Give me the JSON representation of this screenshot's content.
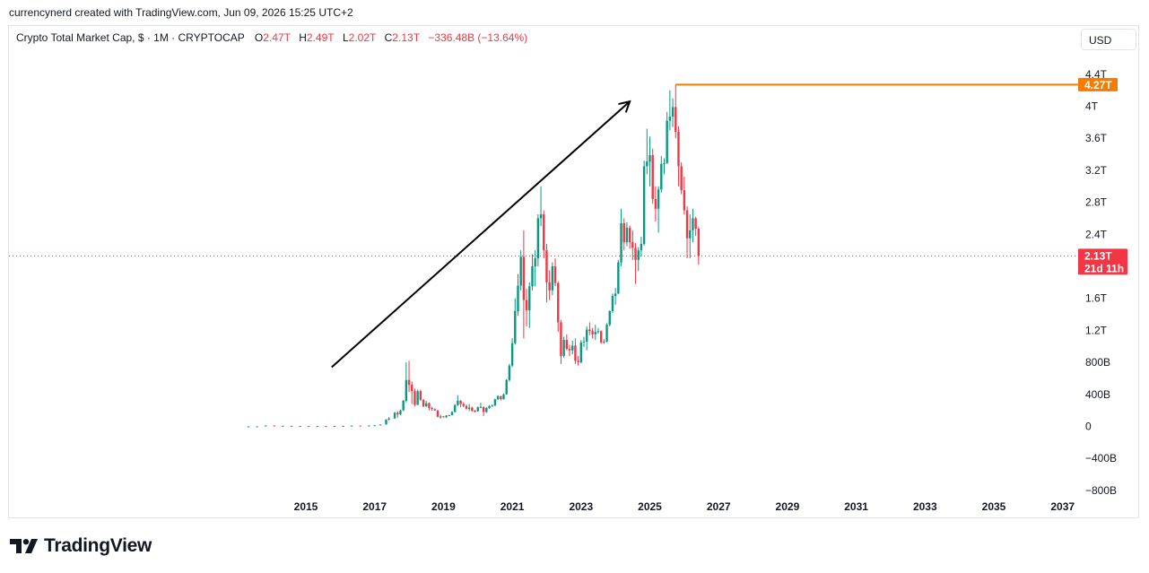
{
  "credit": "currencynerd created with TradingView.com, Jun 09, 2026 15:25 UTC+2",
  "legend": {
    "symbol": "Crypto Total Market Cap, $ · 1M · CRYPTOCAP",
    "open_label": "O",
    "open": "2.47T",
    "high_label": "H",
    "high": "2.49T",
    "low_label": "L",
    "low": "2.02T",
    "close_label": "C",
    "close": "2.13T",
    "change": "−336.48B (−13.64%)"
  },
  "currency_button": "USD",
  "brand": {
    "name": "TradingView"
  },
  "colors": {
    "up": "#089981",
    "down": "#f23645",
    "hline": "#f57c00",
    "arrow": "#000000",
    "current": "#f23645"
  },
  "icons": {
    "logo": "tradingview-logo-icon"
  },
  "chart_data": {
    "type": "candlestick",
    "interval": "1M",
    "y_ticks": [
      4400,
      4000,
      3600,
      3200,
      2800,
      2400,
      1600,
      1200,
      800,
      400,
      0,
      -400,
      -800
    ],
    "y_tick_labels": [
      "4.4T",
      "4T",
      "3.6T",
      "3.2T",
      "2.8T",
      "2.4T",
      "1.6T",
      "1.2T",
      "800B",
      "400B",
      "0",
      "−400B",
      "−800B"
    ],
    "x_ticks": [
      "2015",
      "2017",
      "2019",
      "2021",
      "2023",
      "2025",
      "2027",
      "2029",
      "2031",
      "2033",
      "2035",
      "2037"
    ],
    "ylim": [
      -800,
      4400
    ],
    "units": "billions USD",
    "horizontal_line": {
      "value": 4270,
      "label": "4.27T"
    },
    "current_price": {
      "value": 2130,
      "label": "2.13T",
      "countdown": "21d 11h"
    },
    "trend_arrow": {
      "from": {
        "date": "2015-10",
        "value": 740
      },
      "to": {
        "date": "2024-06",
        "value": 4060
      }
    },
    "candles": [
      [
        "2013-05",
        1.3,
        1.4,
        1.2,
        1.3
      ],
      [
        "2013-08",
        1.3,
        1.4,
        1.2,
        1.4
      ],
      [
        "2013-11",
        1.4,
        13,
        1.3,
        11
      ],
      [
        "2014-02",
        11,
        12,
        5,
        6
      ],
      [
        "2014-05",
        6,
        8,
        5,
        7
      ],
      [
        "2014-08",
        7,
        7.5,
        4,
        5
      ],
      [
        "2014-11",
        5,
        6,
        3.5,
        4
      ],
      [
        "2015-02",
        4,
        4.5,
        3,
        3.5
      ],
      [
        "2015-05",
        3.5,
        4.5,
        3,
        4
      ],
      [
        "2015-08",
        4,
        4.5,
        3,
        3.5
      ],
      [
        "2015-11",
        3.5,
        6,
        3.3,
        5.8
      ],
      [
        "2016-02",
        5.8,
        7,
        5,
        6.5
      ],
      [
        "2016-05",
        6.5,
        11,
        6,
        10
      ],
      [
        "2016-08",
        10,
        11,
        8,
        9
      ],
      [
        "2016-11",
        9,
        12,
        8.5,
        11
      ],
      [
        "2017-01",
        11,
        15,
        10,
        14
      ],
      [
        "2017-03",
        14,
        25,
        12,
        24
      ],
      [
        "2017-05",
        24,
        90,
        22,
        85
      ],
      [
        "2017-06",
        85,
        115,
        75,
        100
      ],
      [
        "2017-08",
        100,
        180,
        95,
        170
      ],
      [
        "2017-09",
        170,
        190,
        110,
        150
      ],
      [
        "2017-10",
        150,
        210,
        140,
        200
      ],
      [
        "2017-11",
        200,
        330,
        190,
        320
      ],
      [
        "2017-12",
        320,
        800,
        300,
        580
      ],
      [
        "2018-01",
        580,
        820,
        430,
        520
      ],
      [
        "2018-02",
        520,
        560,
        280,
        440
      ],
      [
        "2018-03",
        440,
        470,
        250,
        270
      ],
      [
        "2018-04",
        270,
        460,
        265,
        440
      ],
      [
        "2018-05",
        440,
        460,
        320,
        330
      ],
      [
        "2018-06",
        330,
        345,
        240,
        250
      ],
      [
        "2018-07",
        250,
        320,
        245,
        290
      ],
      [
        "2018-08",
        290,
        300,
        200,
        230
      ],
      [
        "2018-09",
        230,
        245,
        195,
        215
      ],
      [
        "2018-10",
        215,
        225,
        195,
        200
      ],
      [
        "2018-11",
        200,
        205,
        115,
        120
      ],
      [
        "2018-12",
        120,
        145,
        95,
        125
      ],
      [
        "2019-01",
        125,
        130,
        110,
        115
      ],
      [
        "2019-02",
        115,
        140,
        105,
        135
      ],
      [
        "2019-03",
        135,
        145,
        130,
        140
      ],
      [
        "2019-04",
        140,
        190,
        138,
        180
      ],
      [
        "2019-05",
        180,
        280,
        175,
        265
      ],
      [
        "2019-06",
        265,
        390,
        255,
        320
      ],
      [
        "2019-07",
        320,
        330,
        240,
        280
      ],
      [
        "2019-08",
        280,
        300,
        240,
        255
      ],
      [
        "2019-09",
        255,
        275,
        210,
        220
      ],
      [
        "2019-10",
        220,
        280,
        190,
        235
      ],
      [
        "2019-11",
        235,
        245,
        185,
        195
      ],
      [
        "2019-12",
        195,
        205,
        175,
        190
      ],
      [
        "2020-01",
        190,
        250,
        185,
        240
      ],
      [
        "2020-02",
        240,
        295,
        230,
        240
      ],
      [
        "2020-03",
        240,
        250,
        130,
        180
      ],
      [
        "2020-04",
        180,
        240,
        170,
        230
      ],
      [
        "2020-05",
        230,
        265,
        220,
        255
      ],
      [
        "2020-06",
        255,
        275,
        245,
        260
      ],
      [
        "2020-07",
        260,
        345,
        255,
        340
      ],
      [
        "2020-08",
        340,
        390,
        330,
        375
      ],
      [
        "2020-09",
        375,
        385,
        325,
        340
      ],
      [
        "2020-10",
        340,
        410,
        335,
        400
      ],
      [
        "2020-11",
        400,
        590,
        395,
        580
      ],
      [
        "2020-12",
        580,
        780,
        560,
        760
      ],
      [
        "2021-01",
        760,
        1100,
        740,
        1040
      ],
      [
        "2021-02",
        1040,
        1600,
        1020,
        1440
      ],
      [
        "2021-03",
        1440,
        1900,
        1380,
        1760
      ],
      [
        "2021-04",
        1760,
        2200,
        1700,
        2120
      ],
      [
        "2021-05",
        2120,
        2450,
        1100,
        1580
      ],
      [
        "2021-06",
        1580,
        1720,
        1250,
        1450
      ],
      [
        "2021-07",
        1450,
        1800,
        1230,
        1750
      ],
      [
        "2021-08",
        1750,
        2150,
        1700,
        2000
      ],
      [
        "2021-09",
        2000,
        2200,
        1750,
        2100
      ],
      [
        "2021-10",
        2100,
        2650,
        2000,
        2600
      ],
      [
        "2021-11",
        2600,
        3000,
        2500,
        2650
      ],
      [
        "2021-12",
        2650,
        2700,
        2100,
        2200
      ],
      [
        "2022-01",
        2200,
        2280,
        1550,
        1800
      ],
      [
        "2022-02",
        1800,
        1950,
        1580,
        1700
      ],
      [
        "2022-03",
        1700,
        2050,
        1640,
        2000
      ],
      [
        "2022-04",
        2000,
        2100,
        1750,
        1790
      ],
      [
        "2022-05",
        1790,
        1810,
        1180,
        1300
      ],
      [
        "2022-06",
        1300,
        1330,
        780,
        880
      ],
      [
        "2022-07",
        880,
        1120,
        860,
        1080
      ],
      [
        "2022-08",
        1080,
        1150,
        950,
        970
      ],
      [
        "2022-09",
        970,
        1020,
        880,
        950
      ],
      [
        "2022-10",
        950,
        1070,
        900,
        1010
      ],
      [
        "2022-11",
        1010,
        1100,
        780,
        820
      ],
      [
        "2022-12",
        820,
        880,
        760,
        800
      ],
      [
        "2023-01",
        800,
        1080,
        790,
        1050
      ],
      [
        "2023-02",
        1050,
        1120,
        990,
        1060
      ],
      [
        "2023-03",
        1060,
        1250,
        950,
        1210
      ],
      [
        "2023-04",
        1210,
        1300,
        1140,
        1190
      ],
      [
        "2023-05",
        1190,
        1230,
        1100,
        1150
      ],
      [
        "2023-06",
        1150,
        1270,
        1080,
        1180
      ],
      [
        "2023-07",
        1180,
        1230,
        1160,
        1190
      ],
      [
        "2023-08",
        1190,
        1200,
        1030,
        1050
      ],
      [
        "2023-09",
        1050,
        1090,
        1030,
        1060
      ],
      [
        "2023-10",
        1060,
        1290,
        1050,
        1270
      ],
      [
        "2023-11",
        1270,
        1450,
        1250,
        1440
      ],
      [
        "2023-12",
        1440,
        1660,
        1420,
        1630
      ],
      [
        "2024-01",
        1630,
        1730,
        1520,
        1660
      ],
      [
        "2024-02",
        1660,
        2080,
        1650,
        2050
      ],
      [
        "2024-03",
        2050,
        2720,
        2000,
        2540
      ],
      [
        "2024-04",
        2540,
        2600,
        2200,
        2300
      ],
      [
        "2024-05",
        2300,
        2550,
        2250,
        2480
      ],
      [
        "2024-06",
        2480,
        2510,
        2220,
        2300
      ],
      [
        "2024-07",
        2300,
        2450,
        2080,
        2230
      ],
      [
        "2024-08",
        2230,
        2290,
        1780,
        2080
      ],
      [
        "2024-09",
        2080,
        2240,
        1940,
        2200
      ],
      [
        "2024-10",
        2200,
        2370,
        2120,
        2280
      ],
      [
        "2024-11",
        2280,
        3320,
        2260,
        3250
      ],
      [
        "2024-12",
        3250,
        3720,
        3150,
        3310
      ],
      [
        "2025-01",
        3310,
        3620,
        3000,
        3390
      ],
      [
        "2025-02",
        3390,
        3470,
        2780,
        2840
      ],
      [
        "2025-03",
        2840,
        3000,
        2560,
        2720
      ],
      [
        "2025-04",
        2720,
        3000,
        2420,
        2960
      ],
      [
        "2025-05",
        2960,
        3380,
        2920,
        3280
      ],
      [
        "2025-06",
        3280,
        3350,
        3150,
        3290
      ],
      [
        "2025-07",
        3290,
        3930,
        3280,
        3820
      ],
      [
        "2025-08",
        3820,
        4200,
        3700,
        3870
      ],
      [
        "2025-09",
        3870,
        4100,
        3740,
        3990
      ],
      [
        "2025-10",
        3990,
        4270,
        3600,
        3680
      ],
      [
        "2025-11",
        3680,
        3750,
        3000,
        3250
      ],
      [
        "2025-12",
        3250,
        3300,
        2900,
        2950
      ],
      [
        "2026-01",
        2950,
        3120,
        2650,
        2700
      ],
      [
        "2026-02",
        2700,
        2750,
        2100,
        2350
      ],
      [
        "2026-03",
        2350,
        2650,
        2100,
        2450
      ],
      [
        "2026-04",
        2450,
        2720,
        2300,
        2600
      ],
      [
        "2026-05",
        2600,
        2620,
        2380,
        2470
      ],
      [
        "2026-06",
        2470,
        2490,
        2020,
        2130
      ]
    ]
  }
}
